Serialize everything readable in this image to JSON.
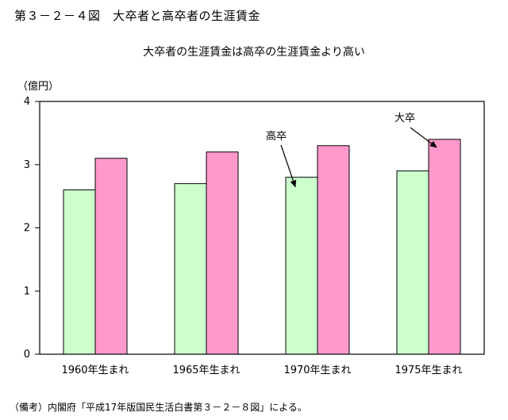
{
  "figure": {
    "title": "第３－２－４図　大卒者と高卒者の生涯賃金",
    "subtitle": "大卒者の生涯賃金は高卒の生涯賃金より高い",
    "unit": "（億円）",
    "footnote": "（備考）内閣府「平成17年版国民生活白書第３－２－８図」による。"
  },
  "chart_data": {
    "type": "bar",
    "categories": [
      "1960年生まれ",
      "1965年生まれ",
      "1970年生まれ",
      "1975年生まれ"
    ],
    "series": [
      {
        "name": "高卒",
        "values": [
          2.6,
          2.7,
          2.8,
          2.9
        ],
        "color": "#ccffcc"
      },
      {
        "name": "大卒",
        "values": [
          3.1,
          3.2,
          3.3,
          3.4
        ],
        "color": "#ff99cc"
      }
    ],
    "y_ticks": [
      "0",
      "1",
      "2",
      "3",
      "4"
    ],
    "ylim": [
      0,
      4
    ],
    "grid": false,
    "annotations": [
      {
        "text": "高卒",
        "series": 0,
        "category": 2
      },
      {
        "text": "大卒",
        "series": 1,
        "category": 3
      }
    ]
  }
}
